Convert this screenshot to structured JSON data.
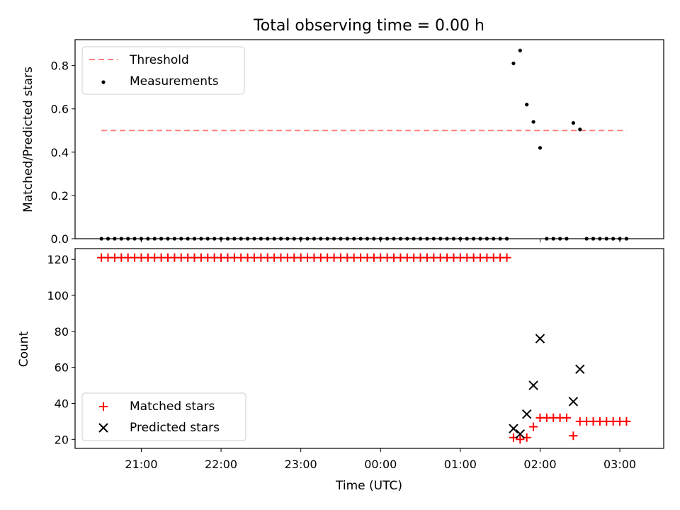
{
  "chart_data": [
    {
      "type": "scatter",
      "title": "Total observing time = 0.00 h",
      "xlabel": "",
      "ylabel": "Matched/Predicted stars",
      "ylim": [
        0,
        0.92
      ],
      "yticks": [
        "0.0",
        "0.2",
        "0.4",
        "0.6",
        "0.8"
      ],
      "ytick_values": [
        0,
        0.2,
        0.4,
        0.6,
        0.8
      ],
      "xlim_hours": [
        20.17,
        27.55
      ],
      "xticks_shown": false,
      "legend_position": "upper-left",
      "series": [
        {
          "name": "Threshold",
          "kind": "dashed-line",
          "color": "#ff7f7f",
          "x_start": "20:30",
          "x_end": "03:05",
          "y": 0.5
        },
        {
          "name": "Measurements",
          "kind": "points",
          "color": "#000000",
          "x_zero_start": "20:30",
          "x_zero_step_min": 5,
          "zero_segments": [
            [
              "20:30",
              "01:35"
            ],
            [
              "02:05",
              "02:20"
            ],
            [
              "02:35",
              "03:05"
            ]
          ],
          "points": [
            {
              "x": "01:40",
              "y": 0.81
            },
            {
              "x": "01:45",
              "y": 0.87
            },
            {
              "x": "01:50",
              "y": 0.62
            },
            {
              "x": "01:55",
              "y": 0.54
            },
            {
              "x": "02:00",
              "y": 0.42
            },
            {
              "x": "02:25",
              "y": 0.535
            },
            {
              "x": "02:30",
              "y": 0.505
            }
          ]
        }
      ]
    },
    {
      "type": "scatter",
      "title": "",
      "xlabel": "Time (UTC)",
      "ylabel": "Count",
      "ylim": [
        15,
        126
      ],
      "yticks": [
        "20",
        "40",
        "60",
        "80",
        "100",
        "120"
      ],
      "ytick_values": [
        20,
        40,
        60,
        80,
        100,
        120
      ],
      "xticks": [
        "21:00",
        "22:00",
        "23:00",
        "00:00",
        "01:00",
        "02:00",
        "03:00"
      ],
      "xtick_hours": [
        21,
        22,
        23,
        24,
        25,
        26,
        27
      ],
      "xlim_hours": [
        20.17,
        27.55
      ],
      "legend_position": "lower-left",
      "series": [
        {
          "name": "Matched stars",
          "kind": "plus",
          "color": "#ff0000",
          "constant_run": {
            "from": "20:30",
            "to": "01:35",
            "step_min": 5,
            "y": 121
          },
          "points": [
            {
              "x": "01:40",
              "y": 21
            },
            {
              "x": "01:45",
              "y": 20
            },
            {
              "x": "01:50",
              "y": 21
            },
            {
              "x": "01:55",
              "y": 27
            },
            {
              "x": "02:00",
              "y": 32
            },
            {
              "x": "02:05",
              "y": 32
            },
            {
              "x": "02:10",
              "y": 32
            },
            {
              "x": "02:15",
              "y": 32
            },
            {
              "x": "02:20",
              "y": 32
            },
            {
              "x": "02:25",
              "y": 22
            },
            {
              "x": "02:30",
              "y": 30
            },
            {
              "x": "02:35",
              "y": 30
            },
            {
              "x": "02:40",
              "y": 30
            },
            {
              "x": "02:45",
              "y": 30
            },
            {
              "x": "02:50",
              "y": 30
            },
            {
              "x": "02:55",
              "y": 30
            },
            {
              "x": "03:00",
              "y": 30
            },
            {
              "x": "03:05",
              "y": 30
            }
          ]
        },
        {
          "name": "Predicted stars",
          "kind": "x",
          "color": "#000000",
          "points": [
            {
              "x": "01:40",
              "y": 26
            },
            {
              "x": "01:45",
              "y": 23
            },
            {
              "x": "01:50",
              "y": 34
            },
            {
              "x": "01:55",
              "y": 50
            },
            {
              "x": "02:00",
              "y": 76
            },
            {
              "x": "02:25",
              "y": 41
            },
            {
              "x": "02:30",
              "y": 59
            }
          ]
        }
      ]
    }
  ]
}
